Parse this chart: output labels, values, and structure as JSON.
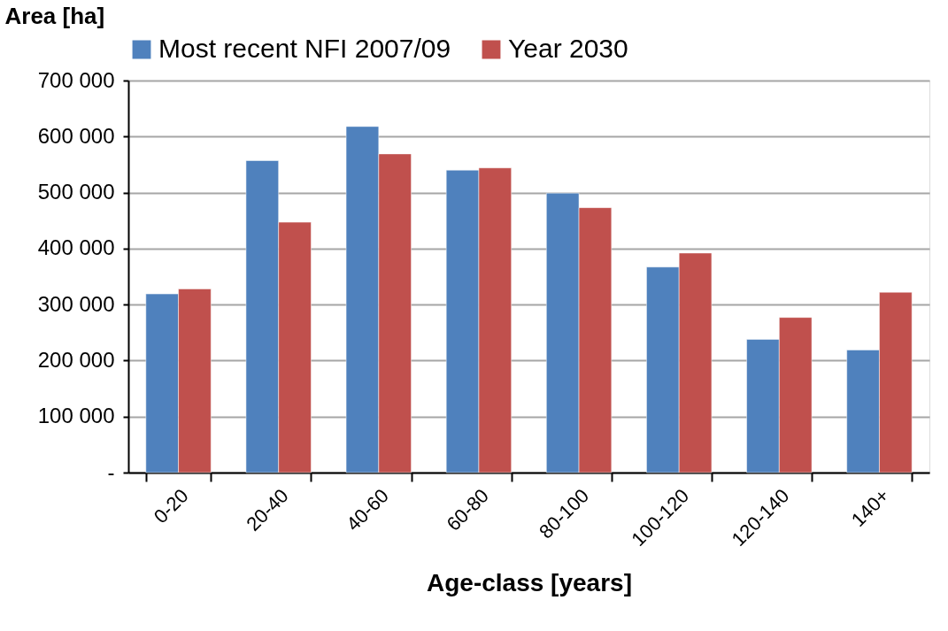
{
  "chart_data": {
    "type": "bar",
    "xlabel": "Age-class [years]",
    "ylabel": "Area [ha]",
    "categories": [
      "0-20",
      "20-40",
      "40-60",
      "60-80",
      "80-100",
      "100-120",
      "120-140",
      "140+"
    ],
    "series": [
      {
        "name": "Most recent NFI 2007/09",
        "color": "#4f81bd",
        "values": [
          319000,
          557000,
          618000,
          540000,
          499000,
          367000,
          238000,
          219000
        ]
      },
      {
        "name": "Year 2030",
        "color": "#c0504d",
        "values": [
          328000,
          447000,
          569000,
          544000,
          473000,
          392000,
          277000,
          322000
        ]
      }
    ],
    "ylim": [
      0,
      700000
    ],
    "yticks": [
      {
        "value": 0,
        "label": "-"
      },
      {
        "value": 100000,
        "label": "100 000"
      },
      {
        "value": 200000,
        "label": "200 000"
      },
      {
        "value": 300000,
        "label": "300 000"
      },
      {
        "value": 400000,
        "label": "400 000"
      },
      {
        "value": 500000,
        "label": "500 000"
      },
      {
        "value": 600000,
        "label": "600 000"
      },
      {
        "value": 700000,
        "label": "700 000"
      }
    ],
    "grid": "y",
    "legend": "top"
  }
}
